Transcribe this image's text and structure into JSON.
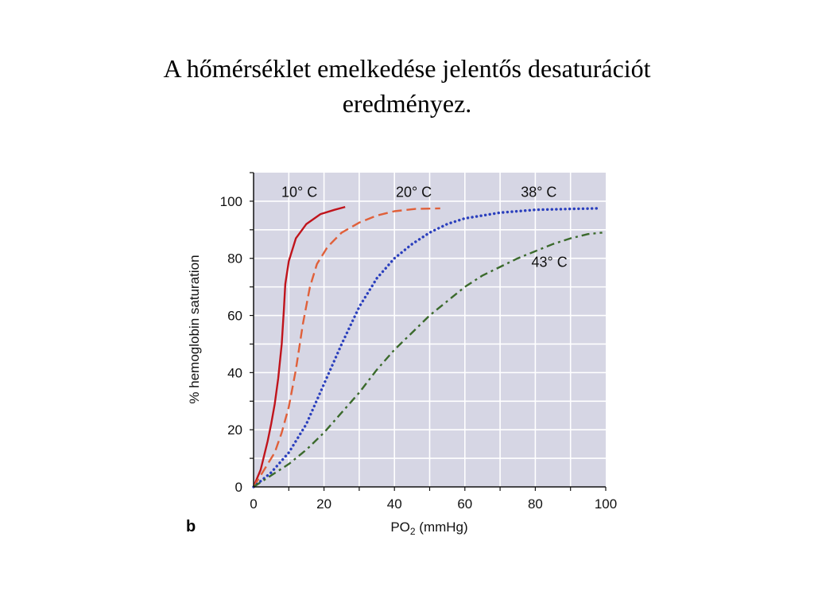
{
  "slide": {
    "title_line1": "A hőmérséklet emelkedése  jelentős desaturációt",
    "title_line2": "eredményez."
  },
  "chart_data": {
    "type": "line",
    "panel_label": "b",
    "xlabel": "PO",
    "xlabel_sub": "2",
    "xlabel_unit": " (mmHg)",
    "ylabel": "% hemoglobin saturation",
    "xlim": [
      0,
      100
    ],
    "ylim": [
      0,
      110
    ],
    "xticks": [
      0,
      20,
      40,
      60,
      80,
      100
    ],
    "yticks": [
      0,
      20,
      40,
      60,
      80,
      100
    ],
    "grid": true,
    "plot_background": "#d6d6e4",
    "series": [
      {
        "name": "10° C",
        "color": "#c0141c",
        "dash": "solid",
        "label_at": [
          13,
          101.5
        ],
        "points": [
          [
            0,
            0
          ],
          [
            1,
            3
          ],
          [
            2,
            6
          ],
          [
            3,
            11
          ],
          [
            4,
            16
          ],
          [
            5,
            22
          ],
          [
            6,
            29
          ],
          [
            7,
            38
          ],
          [
            8,
            50
          ],
          [
            8.6,
            62
          ],
          [
            9,
            71
          ],
          [
            10,
            79
          ],
          [
            12,
            87
          ],
          [
            15,
            92
          ],
          [
            19,
            95.5
          ],
          [
            23,
            97
          ],
          [
            26,
            98
          ]
        ]
      },
      {
        "name": "20° C",
        "color": "#e0603a",
        "dash": "dashed",
        "label_at": [
          45.5,
          101.5
        ],
        "points": [
          [
            0,
            0
          ],
          [
            3,
            6
          ],
          [
            6,
            12
          ],
          [
            8,
            19
          ],
          [
            10,
            28
          ],
          [
            12,
            41
          ],
          [
            14,
            57
          ],
          [
            16,
            70
          ],
          [
            18,
            78
          ],
          [
            21,
            84
          ],
          [
            25,
            89
          ],
          [
            30,
            92.5
          ],
          [
            35,
            95
          ],
          [
            40,
            96.5
          ],
          [
            46,
            97.3
          ],
          [
            53,
            97.5
          ]
        ]
      },
      {
        "name": "38° C",
        "color": "#2a3fbd",
        "dash": "dotted",
        "label_at": [
          81,
          101.5
        ],
        "points": [
          [
            0,
            0
          ],
          [
            5,
            5
          ],
          [
            10,
            12
          ],
          [
            15,
            22
          ],
          [
            20,
            36
          ],
          [
            25,
            50
          ],
          [
            30,
            63
          ],
          [
            35,
            73
          ],
          [
            40,
            80
          ],
          [
            45,
            85
          ],
          [
            50,
            89
          ],
          [
            55,
            92
          ],
          [
            60,
            94
          ],
          [
            70,
            96
          ],
          [
            80,
            97
          ],
          [
            90,
            97.3
          ],
          [
            98,
            97.5
          ]
        ]
      },
      {
        "name": "43° C",
        "color": "#3b6a2c",
        "dash": "dashdot",
        "label_at": [
          84,
          77
        ],
        "points": [
          [
            0,
            0
          ],
          [
            5,
            4
          ],
          [
            10,
            8
          ],
          [
            15,
            13
          ],
          [
            20,
            19
          ],
          [
            25,
            26
          ],
          [
            30,
            33
          ],
          [
            35,
            41
          ],
          [
            40,
            48
          ],
          [
            45,
            54
          ],
          [
            50,
            60
          ],
          [
            55,
            65
          ],
          [
            60,
            70
          ],
          [
            65,
            74
          ],
          [
            70,
            77
          ],
          [
            75,
            80
          ],
          [
            80,
            82.5
          ],
          [
            85,
            85
          ],
          [
            90,
            87
          ],
          [
            95,
            88.5
          ],
          [
            99,
            89
          ]
        ]
      }
    ]
  }
}
